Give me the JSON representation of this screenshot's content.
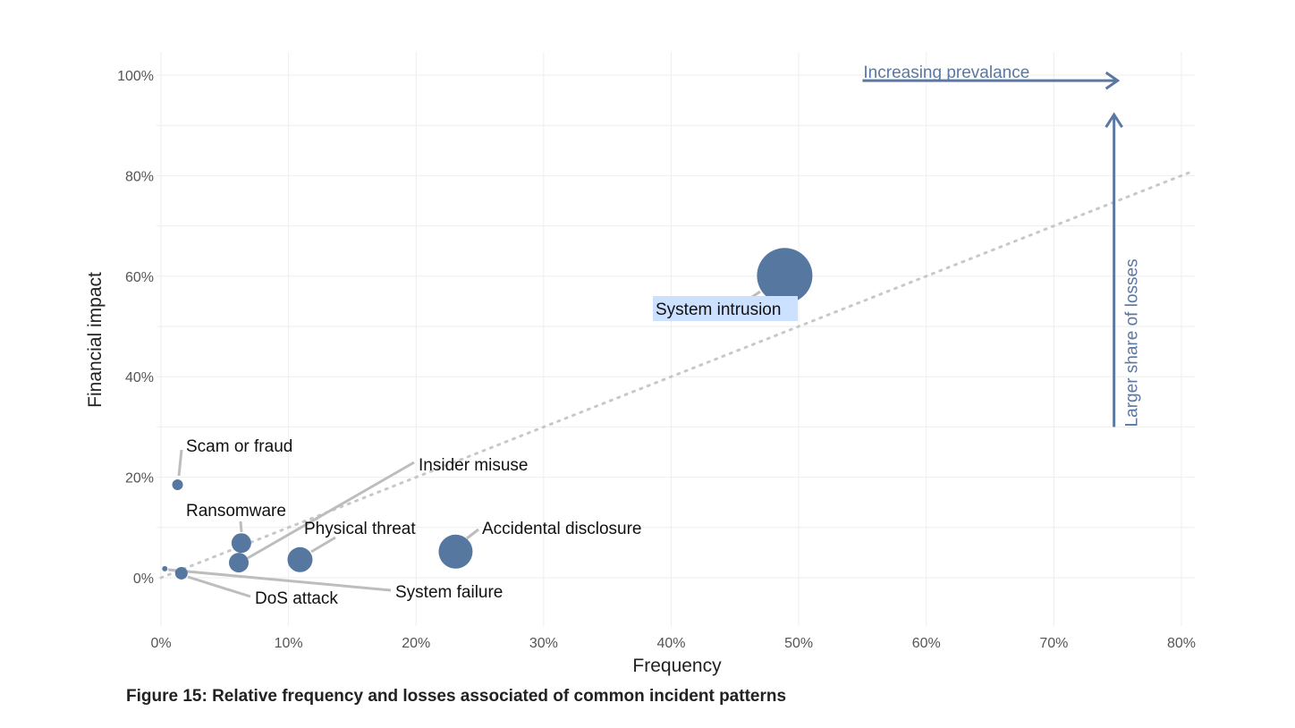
{
  "chart_data": {
    "type": "scatter",
    "subtype": "bubble",
    "xlabel": "Frequency",
    "ylabel": "Financial impact",
    "xlim": [
      0,
      81
    ],
    "ylim": [
      -10,
      103
    ],
    "x_ticks": [
      "0%",
      "10%",
      "20%",
      "30%",
      "40%",
      "50%",
      "60%",
      "70%",
      "80%"
    ],
    "y_ticks": [
      "0%",
      "20%",
      "40%",
      "60%",
      "80%",
      "100%"
    ],
    "grid": true,
    "legend": "none",
    "bubble_color": "#56779f",
    "points": [
      {
        "label": "Scam or fraud",
        "x": 1.3,
        "y": 18.5,
        "size": 6
      },
      {
        "label": "Ransomware",
        "x": 6.3,
        "y": 6.9,
        "size": 11
      },
      {
        "label": "Insider misuse",
        "x": 6.1,
        "y": 3.0,
        "size": 11
      },
      {
        "label": "Physical threat",
        "x": 10.9,
        "y": 3.6,
        "size": 14
      },
      {
        "label": "Accidental disclosure",
        "x": 23.1,
        "y": 5.2,
        "size": 19
      },
      {
        "label": "System failure",
        "x": 0.3,
        "y": 1.8,
        "size": 3
      },
      {
        "label": "DoS attack",
        "x": 1.6,
        "y": 0.9,
        "size": 7
      },
      {
        "label": "System intrusion",
        "x": 48.9,
        "y": 60.1,
        "size": 31,
        "highlighted": true
      }
    ],
    "reference_line": {
      "style": "dotted",
      "from": [
        0,
        0
      ],
      "to": [
        81,
        81
      ]
    },
    "annotations": [
      {
        "text": "Increasing prevalance",
        "arrow": "right",
        "from": [
          55,
          95
        ],
        "to": [
          75,
          95
        ]
      },
      {
        "text": "Larger share of losses",
        "arrow": "up",
        "from": [
          75,
          30
        ],
        "to": [
          75,
          90
        ]
      }
    ],
    "caption": "Figure 15: Relative frequency and losses associated of common incident patterns"
  }
}
